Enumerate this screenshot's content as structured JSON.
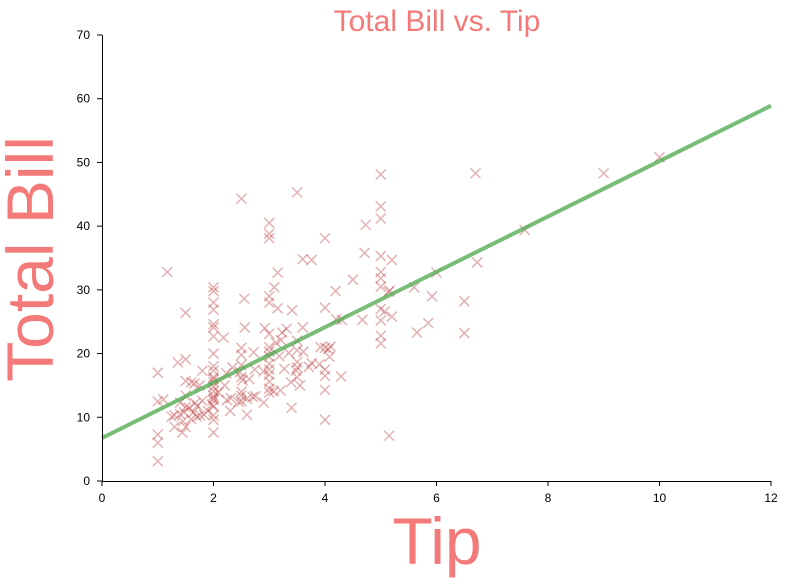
{
  "chart_data": {
    "type": "scatter",
    "title": "Total Bill vs. Tip",
    "xlabel": "Tip",
    "ylabel": "Total Bill",
    "xlim": [
      0,
      12
    ],
    "ylim": [
      0,
      70
    ],
    "xticks": [
      "0",
      "2",
      "4",
      "6",
      "8",
      "10",
      "12"
    ],
    "yticks": [
      "0",
      "10",
      "20",
      "30",
      "40",
      "50",
      "60",
      "70"
    ],
    "grid": false,
    "legend": "none",
    "colors": {
      "text": "#f47a7a",
      "points": "#b22222",
      "line": "#4aa84a"
    },
    "marker": "x",
    "fit_line": {
      "x": [
        0,
        12
      ],
      "y": [
        6.75,
        58.9
      ]
    },
    "series": [
      {
        "points": [
          [
            1.0,
            3.1
          ],
          [
            1.0,
            6.0
          ],
          [
            1.0,
            7.3
          ],
          [
            1.0,
            12.5
          ],
          [
            1.0,
            17.0
          ],
          [
            1.1,
            12.8
          ],
          [
            1.17,
            32.8
          ],
          [
            1.25,
            10.1
          ],
          [
            1.3,
            8.5
          ],
          [
            1.3,
            10.3
          ],
          [
            1.36,
            18.6
          ],
          [
            1.4,
            10.5
          ],
          [
            1.4,
            12.3
          ],
          [
            1.44,
            7.6
          ],
          [
            1.45,
            9.4
          ],
          [
            1.47,
            10.8
          ],
          [
            1.5,
            8.5
          ],
          [
            1.5,
            11.6
          ],
          [
            1.5,
            13.4
          ],
          [
            1.5,
            15.7
          ],
          [
            1.5,
            19.1
          ],
          [
            1.5,
            26.4
          ],
          [
            1.56,
            11.5
          ],
          [
            1.6,
            9.7
          ],
          [
            1.6,
            15.5
          ],
          [
            1.64,
            10.8
          ],
          [
            1.66,
            15.3
          ],
          [
            1.67,
            12.2
          ],
          [
            1.7,
            10.1
          ],
          [
            1.71,
            11.8
          ],
          [
            1.75,
            15.0
          ],
          [
            1.76,
            10.3
          ],
          [
            1.8,
            12.6
          ],
          [
            1.8,
            17.3
          ],
          [
            1.83,
            10.4
          ],
          [
            1.9,
            11.0
          ],
          [
            1.97,
            12.0
          ],
          [
            2.0,
            7.6
          ],
          [
            2.0,
            9.6
          ],
          [
            2.0,
            10.3
          ],
          [
            2.0,
            11.7
          ],
          [
            2.0,
            12.7
          ],
          [
            2.0,
            13.0
          ],
          [
            2.0,
            13.4
          ],
          [
            2.0,
            14.1
          ],
          [
            2.0,
            14.8
          ],
          [
            2.0,
            15.5
          ],
          [
            2.0,
            16.0
          ],
          [
            2.0,
            16.3
          ],
          [
            2.0,
            17.3
          ],
          [
            2.0,
            18.0
          ],
          [
            2.0,
            20.0
          ],
          [
            2.0,
            22.7
          ],
          [
            2.0,
            24.1
          ],
          [
            2.0,
            24.6
          ],
          [
            2.0,
            26.9
          ],
          [
            2.0,
            28.0
          ],
          [
            2.0,
            29.8
          ],
          [
            2.0,
            30.4
          ],
          [
            2.09,
            13.9
          ],
          [
            2.18,
            22.5
          ],
          [
            2.2,
            15.0
          ],
          [
            2.23,
            16.9
          ],
          [
            2.24,
            12.7
          ],
          [
            2.3,
            11.0
          ],
          [
            2.31,
            13.0
          ],
          [
            2.34,
            17.8
          ],
          [
            2.45,
            12.4
          ],
          [
            2.47,
            17.1
          ],
          [
            2.5,
            12.5
          ],
          [
            2.5,
            13.4
          ],
          [
            2.5,
            14.0
          ],
          [
            2.5,
            16.3
          ],
          [
            2.5,
            18.2
          ],
          [
            2.5,
            19.8
          ],
          [
            2.5,
            20.9
          ],
          [
            2.5,
            44.3
          ],
          [
            2.52,
            15.8
          ],
          [
            2.55,
            28.6
          ],
          [
            2.56,
            24.1
          ],
          [
            2.6,
            10.4
          ],
          [
            2.6,
            12.9
          ],
          [
            2.64,
            16.0
          ],
          [
            2.7,
            13.2
          ],
          [
            2.72,
            20.2
          ],
          [
            2.74,
            17.5
          ],
          [
            2.75,
            13.3
          ],
          [
            2.9,
            12.3
          ],
          [
            2.9,
            17.2
          ],
          [
            2.92,
            24.0
          ],
          [
            3.0,
            13.9
          ],
          [
            3.0,
            14.5
          ],
          [
            3.0,
            15.6
          ],
          [
            3.0,
            16.7
          ],
          [
            3.0,
            17.5
          ],
          [
            3.0,
            18.4
          ],
          [
            3.0,
            19.5
          ],
          [
            3.0,
            20.3
          ],
          [
            3.0,
            21.0
          ],
          [
            3.0,
            23.1
          ],
          [
            3.0,
            28.0
          ],
          [
            3.0,
            29.0
          ],
          [
            3.0,
            38.1
          ],
          [
            3.0,
            38.8
          ],
          [
            3.0,
            40.5
          ],
          [
            3.08,
            14.1
          ],
          [
            3.09,
            30.4
          ],
          [
            3.12,
            21.7
          ],
          [
            3.15,
            27.1
          ],
          [
            3.15,
            32.7
          ],
          [
            3.18,
            19.6
          ],
          [
            3.2,
            14.2
          ],
          [
            3.21,
            22.1
          ],
          [
            3.23,
            23.3
          ],
          [
            3.27,
            17.6
          ],
          [
            3.31,
            23.9
          ],
          [
            3.35,
            20.1
          ],
          [
            3.39,
            15.5
          ],
          [
            3.4,
            11.5
          ],
          [
            3.41,
            26.8
          ],
          [
            3.48,
            17.3
          ],
          [
            3.5,
            16.3
          ],
          [
            3.5,
            17.8
          ],
          [
            3.5,
            18.7
          ],
          [
            3.5,
            20.5
          ],
          [
            3.5,
            22.0
          ],
          [
            3.5,
            45.3
          ],
          [
            3.55,
            15.0
          ],
          [
            3.6,
            24.1
          ],
          [
            3.6,
            34.8
          ],
          [
            3.61,
            20.3
          ],
          [
            3.71,
            17.9
          ],
          [
            3.76,
            34.7
          ],
          [
            3.76,
            18.5
          ],
          [
            3.9,
            18.3
          ],
          [
            3.92,
            21.0
          ],
          [
            4.0,
            9.6
          ],
          [
            4.0,
            14.3
          ],
          [
            4.0,
            16.5
          ],
          [
            4.0,
            17.5
          ],
          [
            4.0,
            20.9
          ],
          [
            4.0,
            27.2
          ],
          [
            4.0,
            38.1
          ],
          [
            4.06,
            20.7
          ],
          [
            4.08,
            19.5
          ],
          [
            4.1,
            21.1
          ],
          [
            4.19,
            29.8
          ],
          [
            4.2,
            25.4
          ],
          [
            4.29,
            16.4
          ],
          [
            4.3,
            25.3
          ],
          [
            4.5,
            31.6
          ],
          [
            4.67,
            25.3
          ],
          [
            4.71,
            35.8
          ],
          [
            4.73,
            40.2
          ],
          [
            5.0,
            21.6
          ],
          [
            5.0,
            22.8
          ],
          [
            5.0,
            25.2
          ],
          [
            5.0,
            27.0
          ],
          [
            5.0,
            30.5
          ],
          [
            5.0,
            31.8
          ],
          [
            5.0,
            32.8
          ],
          [
            5.0,
            35.3
          ],
          [
            5.0,
            41.2
          ],
          [
            5.0,
            43.1
          ],
          [
            5.0,
            48.1
          ],
          [
            5.07,
            26.6
          ],
          [
            5.14,
            29.7
          ],
          [
            5.15,
            7.1
          ],
          [
            5.16,
            29.9
          ],
          [
            5.2,
            34.7
          ],
          [
            5.2,
            25.8
          ],
          [
            5.6,
            30.4
          ],
          [
            5.65,
            23.3
          ],
          [
            5.85,
            24.8
          ],
          [
            5.92,
            29.0
          ],
          [
            6.0,
            32.7
          ],
          [
            6.5,
            23.2
          ],
          [
            6.5,
            28.2
          ],
          [
            6.7,
            48.3
          ],
          [
            6.73,
            34.3
          ],
          [
            7.58,
            39.4
          ],
          [
            9.0,
            48.3
          ],
          [
            10.0,
            50.8
          ]
        ]
      }
    ]
  }
}
